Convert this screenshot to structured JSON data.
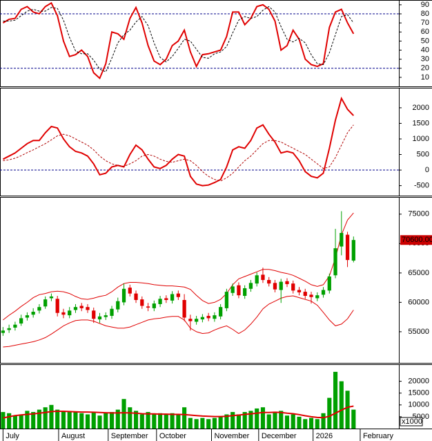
{
  "chart_data": [
    {
      "type": "line",
      "ylim": [
        0,
        94.5
      ],
      "yticks": [
        90,
        80,
        70,
        60,
        50,
        40,
        30,
        20,
        10
      ],
      "reference_lines": [
        80,
        20
      ],
      "reference_color": "#00008b",
      "series": [
        {
          "color": "#e00000",
          "width": 2,
          "dash": "none",
          "values": [
            70,
            74,
            75,
            85,
            88,
            82,
            80,
            88,
            92,
            78,
            50,
            33,
            35,
            40,
            33,
            15,
            9,
            25,
            60,
            58,
            52,
            75,
            87,
            70,
            45,
            28,
            24,
            30,
            45,
            50,
            62,
            38,
            22,
            35,
            36,
            38,
            40,
            55,
            82,
            82,
            68,
            75,
            88,
            90,
            85,
            72,
            40,
            45,
            62,
            52,
            30,
            24,
            22,
            25,
            65,
            82,
            85,
            70,
            58
          ]
        },
        {
          "color": "#000000",
          "width": 1,
          "dash": "3 2",
          "values": [
            72,
            72,
            73,
            78,
            83,
            85,
            83,
            83,
            87,
            86,
            73,
            54,
            39,
            36,
            36,
            29,
            19,
            16,
            31,
            48,
            57,
            62,
            71,
            77,
            67,
            48,
            32,
            27,
            33,
            42,
            52,
            50,
            41,
            32,
            31,
            36,
            38,
            44,
            59,
            73,
            77,
            75,
            77,
            84,
            88,
            82,
            66,
            52,
            49,
            53,
            48,
            35,
            25,
            24,
            37,
            57,
            77,
            79,
            70
          ]
        }
      ]
    },
    {
      "type": "line",
      "ylim": [
        -820,
        2620
      ],
      "yticks": [
        2000,
        1500,
        1000,
        500,
        0,
        -500
      ],
      "reference_lines": [
        0
      ],
      "reference_color": "#00008b",
      "series": [
        {
          "color": "#e00000",
          "width": 2,
          "dash": "none",
          "values": [
            350,
            450,
            550,
            700,
            850,
            950,
            950,
            1200,
            1400,
            1350,
            1000,
            750,
            600,
            550,
            450,
            200,
            -150,
            -100,
            100,
            150,
            100,
            500,
            800,
            650,
            350,
            100,
            50,
            150,
            350,
            500,
            450,
            -200,
            -450,
            -500,
            -480,
            -400,
            -300,
            100,
            650,
            750,
            700,
            950,
            1350,
            1450,
            1150,
            900,
            550,
            600,
            550,
            300,
            -50,
            -200,
            -250,
            -100,
            700,
            1600,
            2300,
            1950,
            1750
          ]
        },
        {
          "color": "#b00000",
          "width": 1,
          "dash": "3 2",
          "values": [
            300,
            330,
            380,
            460,
            560,
            650,
            750,
            850,
            970,
            1100,
            1150,
            1100,
            1000,
            900,
            800,
            650,
            450,
            300,
            200,
            150,
            120,
            200,
            300,
            450,
            500,
            450,
            350,
            280,
            250,
            300,
            350,
            300,
            150,
            -50,
            -200,
            -300,
            -350,
            -250,
            -100,
            100,
            300,
            450,
            650,
            850,
            950,
            950,
            900,
            800,
            700,
            600,
            500,
            350,
            200,
            50,
            100,
            400,
            800,
            1200,
            1450
          ]
        }
      ]
    },
    {
      "type": "candlestick",
      "ylim": [
        49700,
        77800
      ],
      "yticks": [
        75000,
        70000,
        65000,
        60000,
        55000
      ],
      "up_color": "#00a000",
      "down_color": "#e00000",
      "last_label": "70600.00",
      "last_label_color": "#cc0000",
      "open": [
        54800,
        55300,
        55700,
        56400,
        57400,
        57900,
        58600,
        59300,
        60700,
        60600,
        58300,
        57800,
        58700,
        59400,
        59200,
        58600,
        57100,
        57500,
        57700,
        58800,
        60000,
        62500,
        61500,
        60500,
        59300,
        59000,
        59700,
        60700,
        60300,
        61500,
        60400,
        57200,
        56700,
        57100,
        57700,
        57200,
        57600,
        59000,
        61600,
        62900,
        61100,
        62300,
        63200,
        64700,
        63800,
        63300,
        62100,
        63600,
        63200,
        62100,
        61800,
        61300,
        60700,
        61300,
        62000,
        64600,
        69500,
        71500,
        67100
      ],
      "high": [
        55800,
        56200,
        56700,
        57900,
        58300,
        59000,
        59700,
        61000,
        61500,
        61100,
        58900,
        59200,
        59700,
        59900,
        59700,
        59100,
        58200,
        58300,
        59400,
        60800,
        63200,
        63000,
        62000,
        61000,
        59900,
        60300,
        61100,
        61200,
        61900,
        62000,
        61400,
        57900,
        57700,
        58000,
        58200,
        58300,
        59700,
        62300,
        63200,
        63400,
        62900,
        63800,
        65100,
        65900,
        64300,
        63800,
        64000,
        64100,
        63700,
        62600,
        62300,
        61800,
        61700,
        62600,
        64900,
        72500,
        75500,
        72000,
        71200
      ],
      "low": [
        54300,
        54800,
        55200,
        56000,
        56900,
        57400,
        58100,
        58900,
        60200,
        57600,
        57300,
        57300,
        58200,
        58500,
        58200,
        56500,
        56500,
        57000,
        57200,
        58300,
        59500,
        61000,
        59900,
        58900,
        58500,
        58500,
        59200,
        59900,
        59800,
        60400,
        56800,
        55200,
        56200,
        56600,
        56800,
        56700,
        57100,
        58500,
        61100,
        60700,
        60600,
        61800,
        62700,
        63300,
        62700,
        61700,
        59900,
        62600,
        61500,
        61200,
        60600,
        59800,
        60200,
        60800,
        61500,
        64100,
        68000,
        66000,
        66800
      ],
      "close": [
        55200,
        55600,
        56200,
        57300,
        57800,
        58400,
        59200,
        60500,
        61000,
        58200,
        57900,
        58600,
        59200,
        59000,
        58700,
        57200,
        57600,
        57800,
        58900,
        60200,
        62300,
        61500,
        60400,
        59400,
        59100,
        59800,
        60600,
        60400,
        61400,
        60900,
        57400,
        56800,
        57200,
        57500,
        57300,
        57800,
        59200,
        61800,
        62700,
        61200,
        62400,
        63300,
        64600,
        63800,
        63200,
        62200,
        63500,
        63100,
        62000,
        61700,
        61100,
        60900,
        61200,
        62100,
        64400,
        69200,
        71800,
        67200,
        70600
      ],
      "series": [
        {
          "color": "#e00000",
          "width": 1,
          "dash": "none",
          "values": [
            57000,
            57800,
            58500,
            59300,
            60000,
            60800,
            61300,
            61500,
            61800,
            61900,
            61800,
            61500,
            61000,
            60600,
            60500,
            60700,
            61000,
            61200,
            61800,
            62600,
            63200,
            63400,
            63400,
            63300,
            63200,
            63000,
            62900,
            62800,
            62800,
            62700,
            62600,
            62200,
            61200,
            60300,
            59800,
            60000,
            60500,
            61500,
            63000,
            64000,
            64400,
            64800,
            65200,
            65600,
            65600,
            65400,
            65100,
            64900,
            64600,
            64100,
            63600,
            63000,
            62700,
            63000,
            64500,
            67500,
            71500,
            74000,
            75200
          ]
        },
        {
          "color": "#e00000",
          "width": 1,
          "dash": "none",
          "values": [
            52400,
            52500,
            52700,
            52900,
            53100,
            53300,
            53600,
            54000,
            54600,
            55300,
            56000,
            56500,
            56900,
            57000,
            57000,
            56800,
            56400,
            56000,
            55800,
            55600,
            55600,
            55800,
            56200,
            56600,
            57000,
            57200,
            57300,
            57500,
            57600,
            57600,
            57000,
            55600,
            55000,
            54700,
            54800,
            55300,
            55700,
            56000,
            55400,
            54700,
            55300,
            56300,
            57500,
            58900,
            59700,
            60200,
            60700,
            61000,
            61100,
            60800,
            60500,
            60200,
            59500,
            58300,
            57000,
            56000,
            56300,
            57200,
            58700
          ]
        }
      ]
    },
    {
      "type": "bar",
      "ylim": [
        0,
        26900
      ],
      "yticks": [
        20000,
        15000,
        10000,
        5000
      ],
      "unit_label": "x1000",
      "color": "#00a000",
      "values": [
        7000,
        6500,
        5500,
        6000,
        7500,
        7000,
        8000,
        9000,
        10000,
        8000,
        7500,
        7000,
        7000,
        6500,
        6000,
        7000,
        5500,
        6500,
        7000,
        8000,
        12500,
        9000,
        7500,
        6000,
        7000,
        6000,
        6500,
        6000,
        6500,
        6000,
        9000,
        4500,
        4000,
        4500,
        4000,
        4500,
        5000,
        6000,
        7000,
        6000,
        7000,
        7500,
        8500,
        9000,
        6000,
        7000,
        7500,
        5500,
        6000,
        5000,
        4000,
        4500,
        4000,
        6500,
        13000,
        24000,
        20000,
        16000,
        8000
      ],
      "series": [
        {
          "color": "#e00000",
          "width": 2,
          "dash": "none",
          "values": [
            4500,
            5000,
            5500,
            5800,
            6000,
            6200,
            6500,
            6800,
            7200,
            7300,
            7300,
            7200,
            7100,
            7000,
            7000,
            6900,
            6800,
            6700,
            6600,
            6600,
            6700,
            6600,
            6500,
            6300,
            6200,
            6200,
            6100,
            6100,
            6000,
            6000,
            5900,
            5700,
            5500,
            5300,
            5200,
            5100,
            5100,
            5200,
            5500,
            5700,
            6000,
            6200,
            6500,
            6800,
            6800,
            6900,
            6800,
            6500,
            6300,
            5900,
            5400,
            5000,
            4700,
            4600,
            5200,
            6500,
            7800,
            9000,
            9500
          ]
        }
      ],
      "xlim": [
        -0.5,
        65.5
      ],
      "xticks": [
        {
          "value": 0,
          "label": "July"
        },
        {
          "value": 9.2,
          "label": "August"
        },
        {
          "value": 17.4,
          "label": "September"
        },
        {
          "value": 25.4,
          "label": "October"
        },
        {
          "value": 34.5,
          "label": "November"
        },
        {
          "value": 42.3,
          "label": "December"
        },
        {
          "value": 51.3,
          "label": "2026"
        },
        {
          "value": 59.1,
          "label": "February"
        }
      ]
    }
  ]
}
